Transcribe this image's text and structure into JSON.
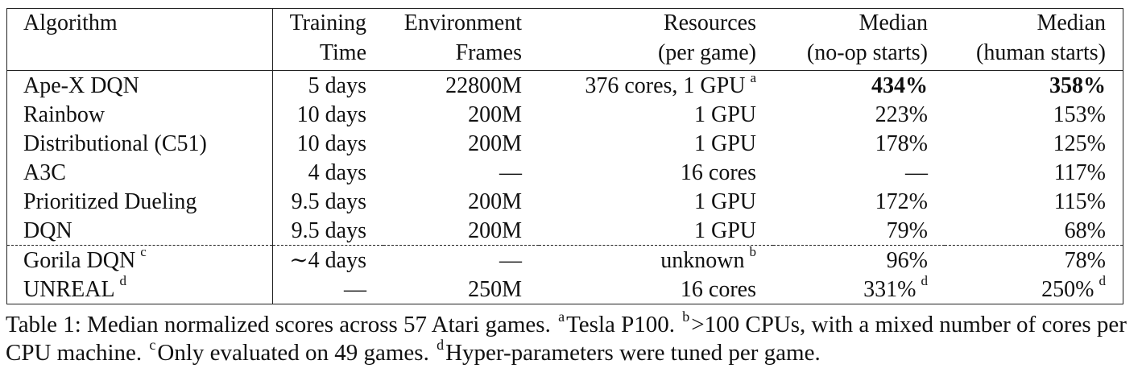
{
  "table": {
    "headers": [
      [
        "Algorithm",
        ""
      ],
      [
        "Training",
        "Time"
      ],
      [
        "Environment",
        "Frames"
      ],
      [
        "Resources",
        "(per game)"
      ],
      [
        "Median",
        "(no-op starts)"
      ],
      [
        "Median",
        "(human starts)"
      ]
    ],
    "rows": [
      {
        "algorithm": "Ape-X DQN",
        "alg_sup": "",
        "time": "5 days",
        "frames": "22800M",
        "resources": "376 cores, 1 GPU",
        "res_sup": "a",
        "noop": "434%",
        "noop_sup": "",
        "human": "358%",
        "human_sup": "",
        "best": true
      },
      {
        "algorithm": "Rainbow",
        "alg_sup": "",
        "time": "10 days",
        "frames": "200M",
        "resources": "1 GPU",
        "res_sup": "",
        "noop": "223%",
        "noop_sup": "",
        "human": "153%",
        "human_sup": ""
      },
      {
        "algorithm": "Distributional (C51)",
        "alg_sup": "",
        "time": "10 days",
        "frames": "200M",
        "resources": "1 GPU",
        "res_sup": "",
        "noop": "178%",
        "noop_sup": "",
        "human": "125%",
        "human_sup": ""
      },
      {
        "algorithm": "A3C",
        "alg_sup": "",
        "time": "4 days",
        "frames": "—",
        "resources": "16 cores",
        "res_sup": "",
        "noop": "—",
        "noop_sup": "",
        "human": "117%",
        "human_sup": ""
      },
      {
        "algorithm": "Prioritized Dueling",
        "alg_sup": "",
        "time": "9.5 days",
        "frames": "200M",
        "resources": "1 GPU",
        "res_sup": "",
        "noop": "172%",
        "noop_sup": "",
        "human": "115%",
        "human_sup": ""
      },
      {
        "algorithm": "DQN",
        "alg_sup": "",
        "time": "9.5 days",
        "frames": "200M",
        "resources": "1 GPU",
        "res_sup": "",
        "noop": "79%",
        "noop_sup": "",
        "human": "68%",
        "human_sup": ""
      },
      {
        "algorithm": "Gorila DQN",
        "alg_sup": "c",
        "time": "∼4 days",
        "frames": "—",
        "resources": "unknown",
        "res_sup": "b",
        "noop": "96%",
        "noop_sup": "",
        "human": "78%",
        "human_sup": ""
      },
      {
        "algorithm": "UNREAL",
        "alg_sup": "d",
        "time": "—",
        "frames": "250M",
        "resources": "16 cores",
        "res_sup": "",
        "noop": "331%",
        "noop_sup": "d",
        "human": "250%",
        "human_sup": "d"
      }
    ]
  },
  "caption": {
    "label": "Table 1:",
    "s1": "Median normalized scores across 57 Atari games.",
    "m_a": "a",
    "s2": "Tesla P100.",
    "m_b": "b",
    "s3": ">100 CPUs, with a mixed number of cores per CPU machine.",
    "m_c": "c",
    "s4": "Only evaluated on 49 games.",
    "m_d": "d",
    "s5": "Hyper-parameters were tuned per game."
  }
}
